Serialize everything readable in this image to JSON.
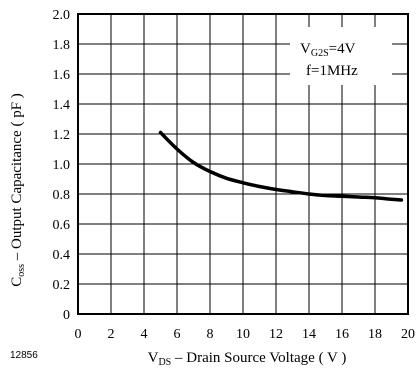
{
  "figure_id": "12856",
  "chart_data": {
    "type": "line",
    "xlabel": {
      "main": "V",
      "sub": "DS",
      "rest": " – Drain Source Voltage ( V )"
    },
    "ylabel": {
      "main": "C",
      "sub": "oss",
      "rest": "  – Output Capacitance ( pF )"
    },
    "xlim": [
      0,
      20
    ],
    "ylim": [
      0,
      2.0
    ],
    "xticks": [
      "0",
      "2",
      "4",
      "6",
      "8",
      "10",
      "12",
      "14",
      "16",
      "18",
      "20"
    ],
    "yticks": [
      "0",
      "0.2",
      "0.4",
      "0.6",
      "0.8",
      "1.0",
      "1.2",
      "1.4",
      "1.6",
      "1.8",
      "2.0"
    ],
    "grid": true,
    "annotations": [
      {
        "main": "V",
        "sub": "G2S",
        "rest": "=4V"
      },
      {
        "main": "f=1MHz",
        "sub": "",
        "rest": ""
      }
    ],
    "series": [
      {
        "x": [
          5,
          6,
          7,
          8,
          9,
          10,
          11,
          12,
          13,
          14,
          15,
          16,
          17,
          18,
          19,
          19.6
        ],
        "y": [
          1.21,
          1.1,
          1.01,
          0.95,
          0.905,
          0.875,
          0.85,
          0.83,
          0.815,
          0.8,
          0.79,
          0.785,
          0.78,
          0.775,
          0.765,
          0.76
        ]
      }
    ]
  }
}
